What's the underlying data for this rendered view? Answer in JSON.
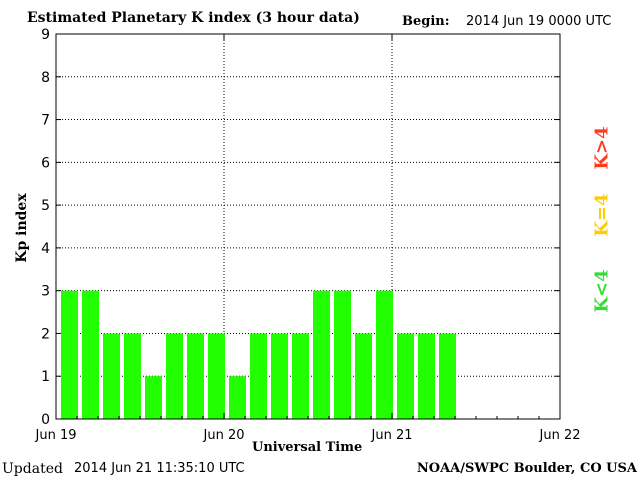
{
  "header": {
    "title": "Estimated Planetary K index (3 hour data)",
    "begin_label": "Begin:",
    "begin_value": "2014 Jun 19 0000 UTC"
  },
  "footer": {
    "updated_label": "Updated",
    "updated_value": "2014 Jun 21 11:35:10 UTC",
    "credit": "NOAA/SWPC Boulder, CO USA"
  },
  "legend": {
    "low": "K<4",
    "mid": "K=4",
    "high": "K>4",
    "colors": {
      "low": "#22ff00",
      "mid": "#ffcc00",
      "high": "#ff3b1f"
    }
  },
  "chart_data": {
    "type": "bar",
    "title": "Estimated Planetary K index (3 hour data)",
    "xlabel": "Universal Time",
    "ylabel": "Kp index",
    "ylim": [
      0,
      9
    ],
    "yticks": [
      0,
      1,
      2,
      3,
      4,
      5,
      6,
      7,
      8,
      9
    ],
    "xticks": [
      "Jun 19",
      "Jun 20",
      "Jun 21",
      "Jun 22"
    ],
    "x_range_days": 3,
    "bins_per_day": 8,
    "grid": true,
    "bar_color": "#22ff00",
    "values": [
      3,
      3,
      2,
      2,
      1,
      2,
      2,
      2,
      1,
      2,
      2,
      2,
      3,
      3,
      2,
      3,
      2,
      2,
      2
    ]
  }
}
